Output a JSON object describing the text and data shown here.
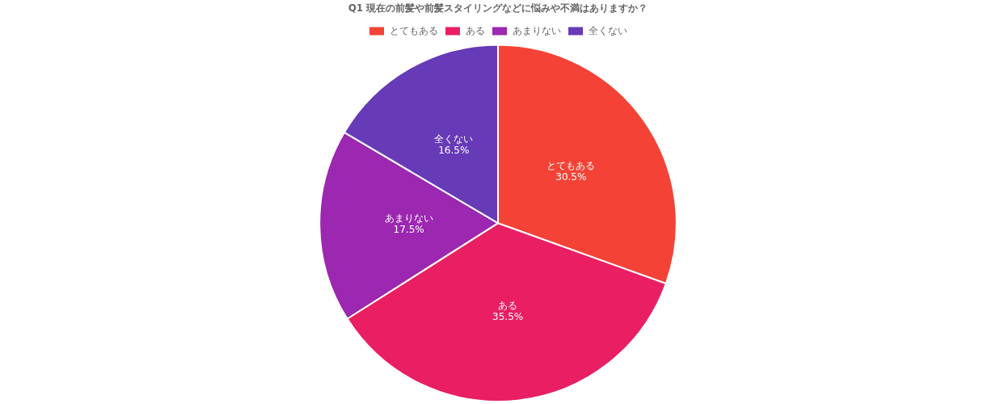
{
  "chart_data": {
    "type": "pie",
    "title": "Q1 現在の前髪や前髪スタイリングなどに悩みや不満はありますか？",
    "categories": [
      "とてもある",
      "ある",
      "あまりない",
      "全くない"
    ],
    "values": [
      30.5,
      35.5,
      17.5,
      16.5
    ],
    "colors": [
      "#f44336",
      "#e91e63",
      "#9c27b0",
      "#673ab7"
    ],
    "value_labels": [
      "30.5%",
      "35.5%",
      "17.5%",
      "16.5%"
    ],
    "legend": "top"
  }
}
